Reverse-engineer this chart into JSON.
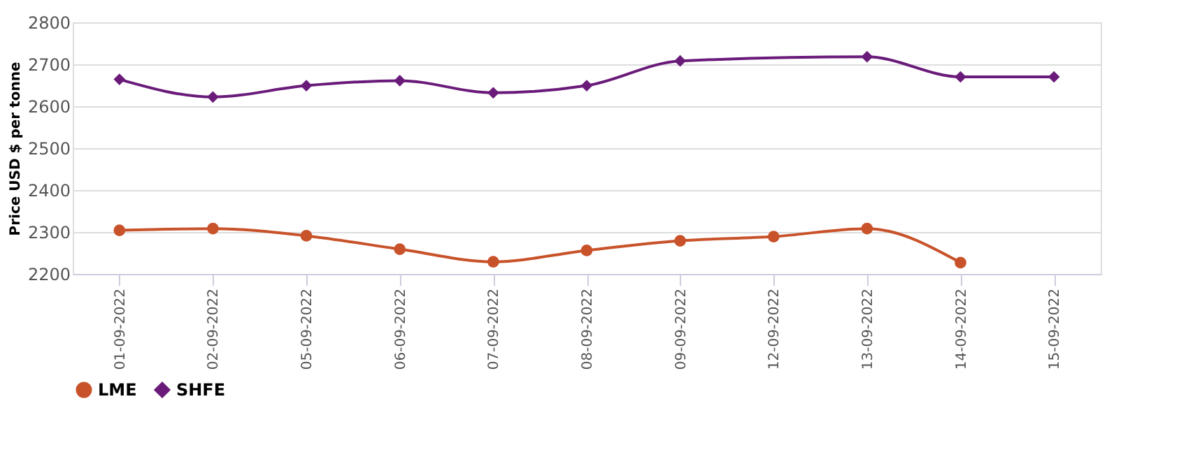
{
  "chart_data": {
    "type": "line",
    "ylabel": "Price USD $ per tonne",
    "categories": [
      "01-09-2022",
      "02-09-2022",
      "05-09-2022",
      "06-09-2022",
      "07-09-2022",
      "08-09-2022",
      "09-09-2022",
      "12-09-2022",
      "13-09-2022",
      "14-09-2022",
      "15-09-2022"
    ],
    "series": [
      {
        "name": "LME",
        "color": "#c8522a",
        "marker": "circle",
        "values": [
          2304,
          2308,
          2291,
          2259,
          2229,
          2256,
          2279,
          2289,
          2308,
          2227,
          null
        ]
      },
      {
        "name": "SHFE",
        "color": "#6a1b7a",
        "marker": "diamond",
        "values": [
          2664,
          2622,
          2649,
          2661,
          2632,
          2649,
          2708,
          null,
          2718,
          2670,
          2670
        ]
      }
    ],
    "ylim": [
      2200,
      2800
    ],
    "yticks": [
      2200,
      2300,
      2400,
      2500,
      2600,
      2700,
      2800
    ],
    "grid": "y",
    "legend": "bottom",
    "line_style": "solid"
  }
}
